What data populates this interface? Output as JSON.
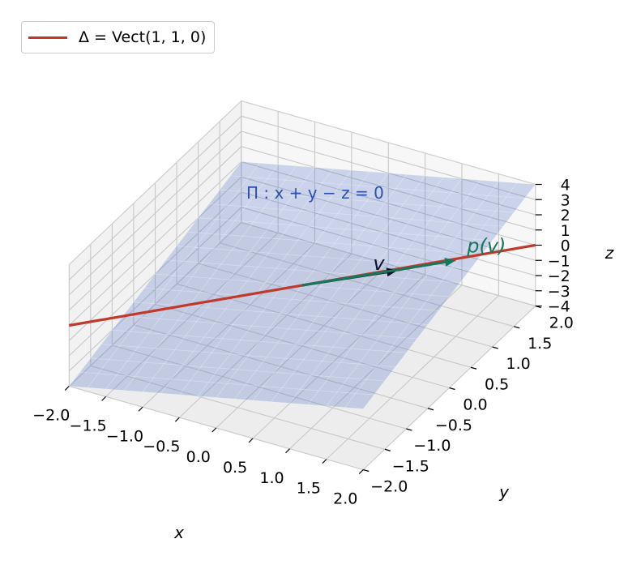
{
  "chart_data": {
    "type": "3d-line",
    "x": {
      "label": "x",
      "lim": [
        -2,
        2
      ],
      "ticks": [
        "−2.0",
        "−1.5",
        "−1.0",
        "−0.5",
        "0.0",
        "0.5",
        "1.0",
        "1.5",
        "2.0"
      ],
      "values": [
        -2,
        -1.5,
        -1,
        -0.5,
        0,
        0.5,
        1,
        1.5,
        2
      ]
    },
    "y": {
      "label": "y",
      "lim": [
        -2,
        2
      ],
      "ticks": [
        "−2.0",
        "−1.5",
        "−1.0",
        "−0.5",
        "0.0",
        "0.5",
        "1.0",
        "1.5",
        "2.0"
      ],
      "values": [
        -2,
        -1.5,
        -1,
        -0.5,
        0,
        0.5,
        1,
        1.5,
        2
      ]
    },
    "z": {
      "label": "z",
      "lim": [
        -4,
        4
      ],
      "ticks": [
        "−4",
        "−3",
        "−2",
        "−1",
        "0",
        "1",
        "2",
        "3",
        "4"
      ],
      "values": [
        -4,
        -3,
        -2,
        -1,
        0,
        1,
        2,
        3,
        4
      ]
    },
    "grid": true,
    "legend": {
      "placement": "top-left",
      "entries": [
        {
          "label": "Δ = Vect(1, 1, 0)",
          "color": "#c0392b"
        }
      ]
    },
    "plane": {
      "label": "Π : x + y − z = 0",
      "equation": "x + y - z = 0",
      "color": "#4a6cc0",
      "label_color": "#2f4fb0"
    },
    "line": {
      "name": "Δ = Vect(1, 1, 0)",
      "direction": [
        1,
        1,
        0
      ],
      "t_range": [
        -2,
        2
      ],
      "color": "#c0392b"
    },
    "vectors": [
      {
        "label": "v",
        "components": [
          1,
          0.5,
          1
        ],
        "color": "#0b1230"
      },
      {
        "label": "p(v)",
        "components": [
          1.5,
          1,
          1
        ],
        "color": "#16775a"
      }
    ],
    "projection_segment": {
      "from": [
        1,
        0.5,
        1
      ],
      "to": [
        1.5,
        1,
        1
      ],
      "style": "dashed",
      "color": "#b03a3a"
    }
  }
}
